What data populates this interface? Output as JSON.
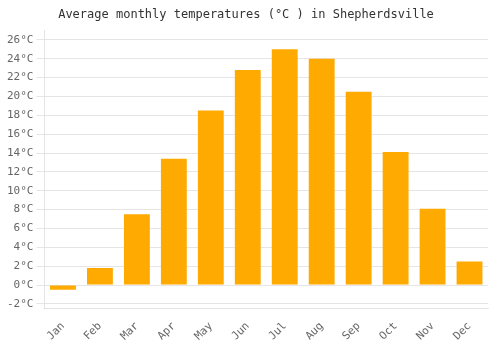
{
  "chart_data": {
    "type": "bar",
    "title": "Average monthly temperatures (°C ) in Shepherdsville",
    "categories": [
      "Jan",
      "Feb",
      "Mar",
      "Apr",
      "May",
      "Jun",
      "Jul",
      "Aug",
      "Sep",
      "Oct",
      "Nov",
      "Dec"
    ],
    "values": [
      -0.5,
      1.8,
      7.5,
      13.4,
      18.5,
      22.8,
      25.0,
      24.0,
      20.5,
      14.1,
      8.1,
      2.5
    ],
    "color": "#FFAA00",
    "ylim": [
      -2.5,
      27
    ],
    "yticks": [
      {
        "value": -2,
        "label": "-2°C"
      },
      {
        "value": 0,
        "label": "0°C"
      },
      {
        "value": 2,
        "label": "2°C"
      },
      {
        "value": 4,
        "label": "4°C"
      },
      {
        "value": 6,
        "label": "6°C"
      },
      {
        "value": 8,
        "label": "8°C"
      },
      {
        "value": 10,
        "label": "10°C"
      },
      {
        "value": 12,
        "label": "12°C"
      },
      {
        "value": 14,
        "label": "14°C"
      },
      {
        "value": 16,
        "label": "16°C"
      },
      {
        "value": 18,
        "label": "18°C"
      },
      {
        "value": 20,
        "label": "20°C"
      },
      {
        "value": 22,
        "label": "22°C"
      },
      {
        "value": 24,
        "label": "24°C"
      },
      {
        "value": 26,
        "label": "26°C"
      }
    ],
    "grid": true
  }
}
